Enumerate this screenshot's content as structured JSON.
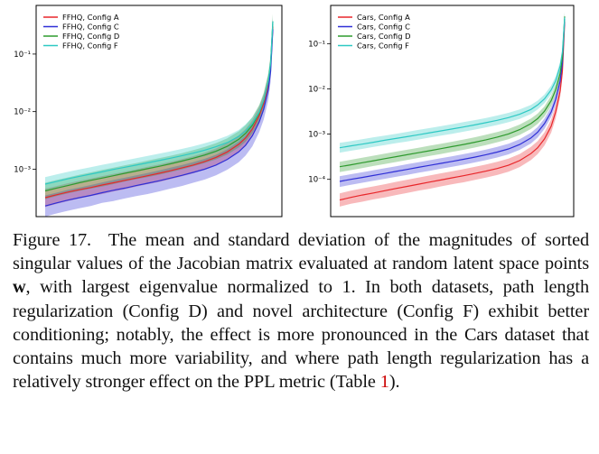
{
  "chart_data": [
    {
      "type": "line",
      "yscale": "log",
      "ylim": [
        0.00015,
        0.7
      ],
      "xlim": [
        0,
        1
      ],
      "grid": false,
      "legend_position": "top-left",
      "y_tick_values": [
        0.1,
        0.01,
        0.001
      ],
      "y_tick_labels": [
        "10⁻¹",
        "10⁻²",
        "10⁻³"
      ],
      "x": [
        0,
        0.05,
        0.1,
        0.15,
        0.2,
        0.25,
        0.3,
        0.35,
        0.4,
        0.45,
        0.5,
        0.55,
        0.6,
        0.65,
        0.7,
        0.75,
        0.8,
        0.85,
        0.88,
        0.91,
        0.94,
        0.96,
        0.98,
        0.99,
        1.0
      ],
      "series": [
        {
          "name": "FFHQ, Config A",
          "color": "#e8262a",
          "mean": [
            0.00032,
            0.00036,
            0.0004,
            0.00044,
            0.00048,
            0.00053,
            0.00058,
            0.00064,
            0.0007,
            0.00077,
            0.00085,
            0.00094,
            0.00105,
            0.00118,
            0.00135,
            0.0016,
            0.002,
            0.0027,
            0.0035,
            0.005,
            0.0085,
            0.014,
            0.03,
            0.06,
            0.3
          ],
          "lower": [
            0.00022,
            0.00025,
            0.00028,
            0.00031,
            0.00034,
            0.00037,
            0.00041,
            0.00045,
            0.0005,
            0.00055,
            0.0006,
            0.00067,
            0.00075,
            0.00085,
            0.00098,
            0.00117,
            0.00146,
            0.002,
            0.0026,
            0.0037,
            0.0063,
            0.0104,
            0.022,
            0.044,
            0.22
          ],
          "upper": [
            0.00046,
            0.00051,
            0.00057,
            0.00063,
            0.00069,
            0.00076,
            0.00083,
            0.00091,
            0.001,
            0.0011,
            0.00121,
            0.00134,
            0.0015,
            0.00168,
            0.00193,
            0.00229,
            0.00286,
            0.00386,
            0.005,
            0.0071,
            0.0121,
            0.0199,
            0.0426,
            0.085,
            0.42
          ]
        },
        {
          "name": "FFHQ, Config C",
          "color": "#2f2fd6",
          "mean": [
            0.00023,
            0.00026,
            0.00029,
            0.00032,
            0.00035,
            0.00039,
            0.00043,
            0.00047,
            0.00052,
            0.00057,
            0.00063,
            0.0007,
            0.00078,
            0.00088,
            0.001,
            0.00118,
            0.00148,
            0.002,
            0.0026,
            0.0038,
            0.0066,
            0.011,
            0.024,
            0.05,
            0.27
          ],
          "lower": [
            0.00015,
            0.00017,
            0.00019,
            0.00021,
            0.00023,
            0.00026,
            0.00028,
            0.00031,
            0.00034,
            0.00037,
            0.00041,
            0.00046,
            0.00051,
            0.00058,
            0.00066,
            0.00078,
            0.00098,
            0.00132,
            0.00172,
            0.0025,
            0.0044,
            0.0073,
            0.016,
            0.033,
            0.18
          ],
          "upper": [
            0.00035,
            0.00039,
            0.00044,
            0.00048,
            0.00053,
            0.00059,
            0.00065,
            0.00071,
            0.00078,
            0.00086,
            0.00095,
            0.00106,
            0.00118,
            0.00133,
            0.00151,
            0.00178,
            0.00223,
            0.00302,
            0.0039,
            0.0057,
            0.0099,
            0.0165,
            0.036,
            0.075,
            0.4
          ]
        },
        {
          "name": "FFHQ, Config D",
          "color": "#2e9a2e",
          "mean": [
            0.00042,
            0.00047,
            0.00052,
            0.00058,
            0.00064,
            0.0007,
            0.00077,
            0.00085,
            0.00093,
            0.00102,
            0.00112,
            0.00124,
            0.00138,
            0.00155,
            0.00176,
            0.00205,
            0.0025,
            0.0033,
            0.0042,
            0.0058,
            0.0095,
            0.0155,
            0.034,
            0.07,
            0.37
          ],
          "lower": [
            0.0003,
            0.00034,
            0.00038,
            0.00042,
            0.00046,
            0.0005,
            0.00055,
            0.00061,
            0.00067,
            0.00073,
            0.0008,
            0.00089,
            0.00099,
            0.00112,
            0.00127,
            0.00148,
            0.0018,
            0.00238,
            0.003,
            0.0042,
            0.0069,
            0.0113,
            0.025,
            0.052,
            0.28
          ],
          "upper": [
            0.00058,
            0.00065,
            0.00072,
            0.0008,
            0.00088,
            0.00097,
            0.00106,
            0.00117,
            0.00128,
            0.00141,
            0.00155,
            0.00171,
            0.0019,
            0.00214,
            0.00243,
            0.00283,
            0.00345,
            0.00455,
            0.0058,
            0.008,
            0.0131,
            0.0214,
            0.047,
            0.096,
            0.5
          ]
        },
        {
          "name": "FFHQ, Config F",
          "color": "#2ec9c4",
          "mean": [
            0.00055,
            0.00061,
            0.00068,
            0.00075,
            0.00082,
            0.0009,
            0.00099,
            0.00108,
            0.00118,
            0.00129,
            0.00141,
            0.00155,
            0.00171,
            0.0019,
            0.00214,
            0.00245,
            0.0029,
            0.0037,
            0.0046,
            0.0062,
            0.0098,
            0.0158,
            0.034,
            0.07,
            0.37
          ],
          "lower": [
            0.00042,
            0.00047,
            0.00052,
            0.00058,
            0.00064,
            0.0007,
            0.00077,
            0.00084,
            0.00092,
            0.001,
            0.0011,
            0.00121,
            0.00134,
            0.00149,
            0.00168,
            0.00192,
            0.00227,
            0.0029,
            0.0036,
            0.0049,
            0.0078,
            0.0125,
            0.027,
            0.056,
            0.3
          ],
          "upper": [
            0.00073,
            0.00081,
            0.0009,
            0.00099,
            0.00108,
            0.00119,
            0.0013,
            0.00142,
            0.00155,
            0.0017,
            0.00186,
            0.00204,
            0.00225,
            0.0025,
            0.00281,
            0.00322,
            0.0038,
            0.0048,
            0.006,
            0.008,
            0.0126,
            0.0203,
            0.044,
            0.09,
            0.47
          ]
        }
      ]
    },
    {
      "type": "line",
      "yscale": "log",
      "ylim": [
        1.5e-05,
        0.7
      ],
      "xlim": [
        0,
        1
      ],
      "grid": false,
      "legend_position": "top-left",
      "y_tick_values": [
        0.1,
        0.01,
        0.001,
        0.0001
      ],
      "y_tick_labels": [
        "10⁻¹",
        "10⁻²",
        "10⁻³",
        "10⁻⁴"
      ],
      "x": [
        0,
        0.05,
        0.1,
        0.15,
        0.2,
        0.25,
        0.3,
        0.35,
        0.4,
        0.45,
        0.5,
        0.55,
        0.6,
        0.65,
        0.7,
        0.75,
        0.8,
        0.85,
        0.88,
        0.91,
        0.94,
        0.96,
        0.98,
        0.99,
        1.0
      ],
      "series": [
        {
          "name": "Cars, Config A",
          "color": "#e8262a",
          "mean": [
            3.5e-05,
            4e-05,
            4.5e-05,
            5e-05,
            5.6e-05,
            6.3e-05,
            7e-05,
            7.8e-05,
            8.7e-05,
            9.7e-05,
            0.000108,
            0.00012,
            0.000135,
            0.000152,
            0.000174,
            0.000205,
            0.00026,
            0.00037,
            0.0005,
            0.00078,
            0.0015,
            0.0031,
            0.009,
            0.025,
            0.3
          ],
          "lower": [
            2.5e-05,
            2.9e-05,
            3.2e-05,
            3.6e-05,
            4e-05,
            4.5e-05,
            5e-05,
            5.6e-05,
            6.2e-05,
            7e-05,
            7.8e-05,
            8.6e-05,
            9.7e-05,
            0.000109,
            0.000125,
            0.000148,
            0.000187,
            0.000266,
            0.00036,
            0.00056,
            0.00108,
            0.0022,
            0.0065,
            0.018,
            0.22
          ],
          "upper": [
            4.9e-05,
            5.6e-05,
            6.3e-05,
            7e-05,
            7.8e-05,
            8.8e-05,
            9.8e-05,
            0.000109,
            0.000122,
            0.000136,
            0.000151,
            0.000168,
            0.000189,
            0.000213,
            0.000244,
            0.000287,
            0.000364,
            0.00052,
            0.0007,
            0.00109,
            0.0021,
            0.0043,
            0.0126,
            0.035,
            0.42
          ]
        },
        {
          "name": "Cars, Config C",
          "color": "#2f2fd6",
          "mean": [
            9e-05,
            0.0001,
            0.00011,
            0.000122,
            0.000135,
            0.00015,
            0.000166,
            0.000184,
            0.000204,
            0.000226,
            0.00025,
            0.000278,
            0.00031,
            0.00035,
            0.0004,
            0.00047,
            0.00059,
            0.00082,
            0.0011,
            0.0017,
            0.0031,
            0.0058,
            0.015,
            0.037,
            0.35
          ],
          "lower": [
            6.8e-05,
            7.6e-05,
            8.4e-05,
            9.3e-05,
            0.000103,
            0.000114,
            0.000126,
            0.00014,
            0.000155,
            0.000172,
            0.00019,
            0.000211,
            0.000236,
            0.000266,
            0.000304,
            0.000357,
            0.00045,
            0.00062,
            0.00084,
            0.0013,
            0.0024,
            0.0044,
            0.0114,
            0.028,
            0.27
          ],
          "upper": [
            0.000117,
            0.00013,
            0.000143,
            0.000159,
            0.000176,
            0.000195,
            0.000216,
            0.000239,
            0.000265,
            0.000294,
            0.000325,
            0.000361,
            0.000403,
            0.000455,
            0.00052,
            0.00061,
            0.00077,
            0.00107,
            0.00143,
            0.0022,
            0.004,
            0.0075,
            0.0195,
            0.048,
            0.45
          ]
        },
        {
          "name": "Cars, Config D",
          "color": "#2e9a2e",
          "mean": [
            0.00019,
            0.00021,
            0.000233,
            0.000258,
            0.000286,
            0.000317,
            0.00035,
            0.000388,
            0.00043,
            0.000476,
            0.00053,
            0.00059,
            0.00066,
            0.00075,
            0.00086,
            0.00101,
            0.00126,
            0.0017,
            0.0022,
            0.0032,
            0.0055,
            0.0095,
            0.022,
            0.05,
            0.4
          ],
          "lower": [
            0.000145,
            0.00016,
            0.000178,
            0.000197,
            0.000218,
            0.000242,
            0.000268,
            0.000297,
            0.000329,
            0.000364,
            0.000405,
            0.00045,
            0.000505,
            0.00057,
            0.00066,
            0.00077,
            0.00096,
            0.0013,
            0.00168,
            0.00245,
            0.0042,
            0.0073,
            0.0169,
            0.038,
            0.32
          ],
          "upper": [
            0.000245,
            0.000271,
            0.0003,
            0.000333,
            0.000369,
            0.000409,
            0.000452,
            0.0005,
            0.000555,
            0.000614,
            0.00068,
            0.00076,
            0.00085,
            0.00097,
            0.00111,
            0.0013,
            0.00163,
            0.0022,
            0.00284,
            0.0041,
            0.0071,
            0.0123,
            0.028,
            0.065,
            0.5
          ]
        },
        {
          "name": "Cars, Config F",
          "color": "#2ec9c4",
          "mean": [
            0.0005,
            0.00055,
            0.0006,
            0.00066,
            0.00073,
            0.0008,
            0.00088,
            0.00097,
            0.00107,
            0.00118,
            0.0013,
            0.00144,
            0.0016,
            0.00179,
            0.00202,
            0.00232,
            0.00275,
            0.0035,
            0.0044,
            0.006,
            0.0095,
            0.015,
            0.032,
            0.065,
            0.38
          ],
          "lower": [
            0.00039,
            0.00043,
            0.00047,
            0.00052,
            0.00057,
            0.00063,
            0.00069,
            0.00076,
            0.00084,
            0.00093,
            0.00102,
            0.00113,
            0.00126,
            0.00141,
            0.00159,
            0.00183,
            0.00217,
            0.00277,
            0.0035,
            0.0048,
            0.0076,
            0.012,
            0.026,
            0.053,
            0.31
          ],
          "upper": [
            0.00064,
            0.0007,
            0.00077,
            0.00085,
            0.00093,
            0.00102,
            0.00112,
            0.00124,
            0.00136,
            0.0015,
            0.00166,
            0.00184,
            0.00204,
            0.00228,
            0.00258,
            0.00296,
            0.0035,
            0.0044,
            0.0055,
            0.0075,
            0.0119,
            0.0188,
            0.04,
            0.081,
            0.47
          ]
        }
      ]
    }
  ],
  "caption": {
    "figure_label": "Figure 17.",
    "text_before_w": "The mean and standard deviation of the magnitudes of sorted singular values of the Jacobian matrix evaluated at random latent space points",
    "w_symbol": "w",
    "text_after_w": ", with largest eigenvalue normalized to 1. In both datasets, path length regularization (Config D) and novel architecture (Config F) exhibit better conditioning; notably, the effect is more pronounced in the Cars dataset that contains much more variability, and where path length regularization has a relatively stronger effect on the PPL metric (Table",
    "table_ref": "1",
    "text_end": ")."
  }
}
